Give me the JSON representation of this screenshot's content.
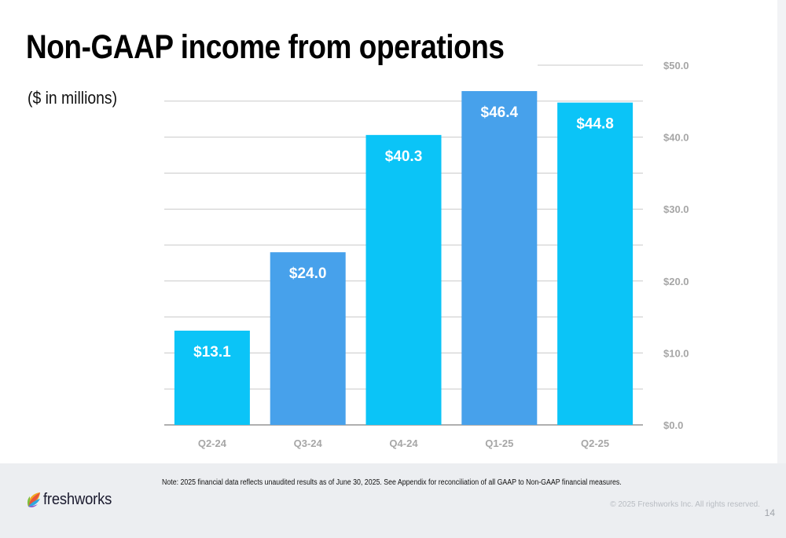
{
  "header": {
    "title": "Non-GAAP income from operations",
    "subtitle": "($ in millions)"
  },
  "chart_data": {
    "type": "bar",
    "title": "Non-GAAP income from operations",
    "subtitle": "($ in millions)",
    "categories": [
      "Q2-24",
      "Q3-24",
      "Q4-24",
      "Q1-25",
      "Q2-25"
    ],
    "values": [
      13.1,
      24.0,
      40.3,
      46.4,
      44.8
    ],
    "data_labels": [
      "$13.1",
      "$24.0",
      "$40.3",
      "$46.4",
      "$44.8"
    ],
    "bar_colors": [
      "#0bc4f7",
      "#47a1eb",
      "#0bc4f7",
      "#47a1eb",
      "#0bc4f7"
    ],
    "ylim": [
      0,
      50
    ],
    "yticks": [
      0,
      10,
      20,
      30,
      40,
      50
    ],
    "ytick_labels": [
      "$0.0",
      "$10.0",
      "$20.0",
      "$30.0",
      "$40.0",
      "$50.0"
    ],
    "y_axis_side": "right",
    "gridlines_every": 5,
    "grid": true
  },
  "footer": {
    "note": "Note: 2025 financial data reflects unaudited results as of June 30, 2025. See Appendix for reconciliation of all GAAP to Non-GAAP financial measures.",
    "brand": "freshworks",
    "copyright": "© 2025 Freshworks Inc. All rights reserved.",
    "page_number": "14"
  },
  "colors": {
    "gridline": "#c9c9c9",
    "axis_label": "#a6a6a6",
    "bar_label": "#ffffff"
  }
}
